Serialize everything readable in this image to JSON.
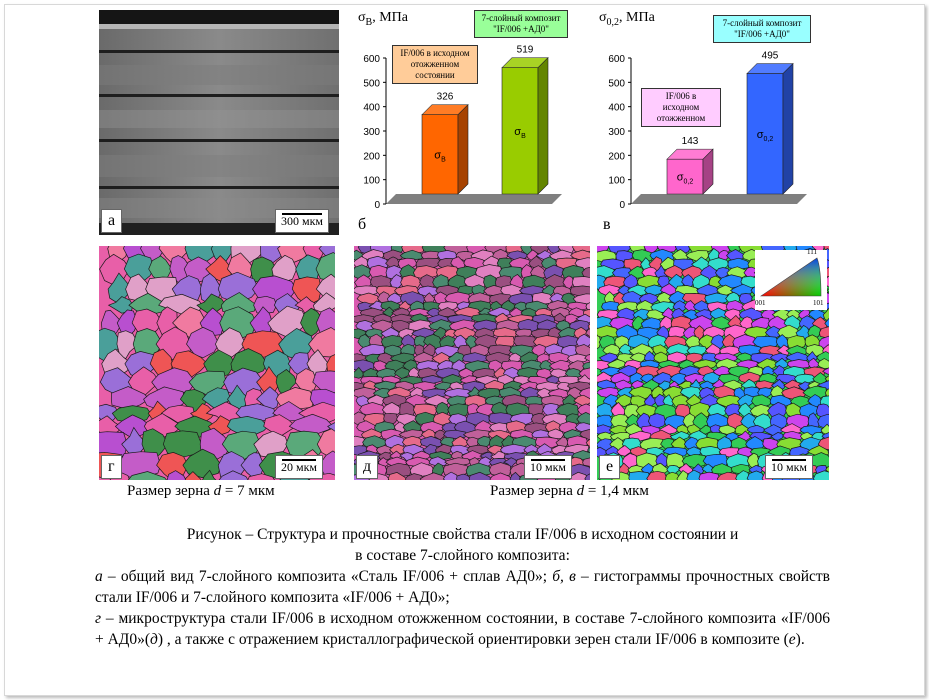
{
  "panels": {
    "a": {
      "label": "а",
      "scale": "300 мкм"
    },
    "b": {
      "label": "б"
    },
    "v": {
      "label": "в"
    },
    "g": {
      "label": "г",
      "scale": "20 мкм"
    },
    "d": {
      "label": "д",
      "scale": "10 мкм"
    },
    "e": {
      "label": "е",
      "scale": "10 мкм"
    }
  },
  "ipf_key": {
    "top": "111",
    "left": "001",
    "right": "101"
  },
  "grain_captions": {
    "left": {
      "prefix": "Размер зерна ",
      "var": "d",
      "suffix": " = 7 мкм"
    },
    "right": {
      "prefix": "Размер зерна ",
      "var": "d",
      "suffix": " = 1,4  мкм"
    }
  },
  "chart_data": [
    {
      "type": "bar",
      "title": "σB, МПа",
      "ylim": [
        0,
        600
      ],
      "yticks": [
        "0",
        "100",
        "200",
        "300",
        "400",
        "500",
        "600"
      ],
      "series": [
        {
          "name": "IF/006 в исходном отожженном состоянии",
          "value": 326,
          "bar_label": "σB",
          "color": "#ff6600"
        },
        {
          "name": "7-слойный композит \"IF/006 +АД0\"",
          "value": 519,
          "bar_label": "σB",
          "color": "#99cc00"
        }
      ]
    },
    {
      "type": "bar",
      "title": "σ0,2, МПа",
      "ylim": [
        0,
        600
      ],
      "yticks": [
        "0",
        "100",
        "200",
        "300",
        "400",
        "500",
        "600"
      ],
      "series": [
        {
          "name": "IF/006 в исходном отожженном",
          "value": 143,
          "bar_label": "σ0,2",
          "color": "#ff66cc"
        },
        {
          "name": "7-слойный композит \"IF/006 +АД0\"",
          "value": 495,
          "bar_label": "σ0,2",
          "color": "#3366ff"
        }
      ]
    }
  ],
  "chart_text": {
    "b": {
      "title_sym": "σ",
      "title_sub": "В",
      "title_unit": ", МПа",
      "legend1_lines": [
        "IF/006 в исходном",
        "отожженном",
        "состоянии"
      ],
      "legend2_lines": [
        "7-слойный композит",
        "\"IF/006 +АД0\""
      ],
      "bar_sym": "σ",
      "bar_sub": "В"
    },
    "v": {
      "title_sym": "σ",
      "title_sub": "0,2",
      "title_unit": ", МПа",
      "legend1_lines": [
        "IF/006 в",
        "исходном",
        "отожженном"
      ],
      "legend2_lines": [
        "7-слойный композит",
        "\"IF/006 +АД0\""
      ],
      "bar_sym": "σ",
      "bar_sub": "0,2"
    }
  },
  "caption": {
    "title_line1": "Рисунок – Структура  и прочностные свойства стали IF/006 в исходном состоянии и",
    "title_line2": "в составе  7-слойного композита:",
    "p1_a": "а",
    "p1_text1": " – общий вид 7-слойного композита «Сталь IF/006 + сплав АД0»; ",
    "p1_bv": "б, в",
    "p1_text2": " – гистограммы прочностных свойств стали IF/006 и 7-слойного композита «IF/006 + АД0»;",
    "p2_g": "г",
    "p2_text1": " – микроструктура стали IF/006 в исходном отожженном состоянии, в составе 7-слойного композита «IF/006 + АД0»(",
    "p2_d": "д",
    "p2_text2": ") , а также с отражением кристаллографической ориентировки зерен  стали IF/006 в композите (",
    "p2_e": "е",
    "p2_text3": ")."
  }
}
